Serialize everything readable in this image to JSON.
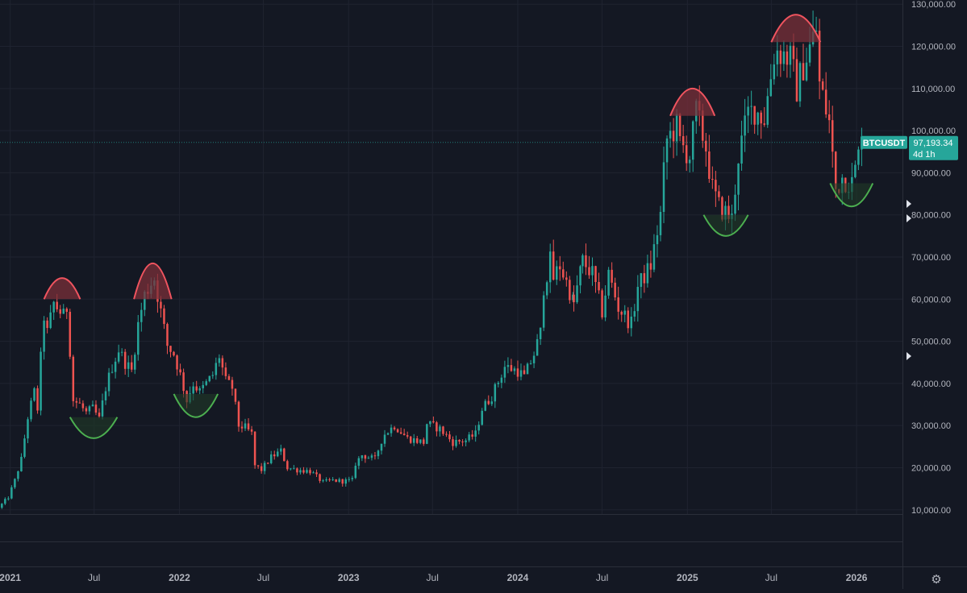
{
  "chart_data": {
    "type": "candlestick",
    "symbol": "BTCUSDT",
    "timeframe": "weekly",
    "current_price_label": "97,193.34",
    "countdown_label": "4d 1h",
    "y_axis": {
      "ticks": [
        10000,
        20000,
        30000,
        40000,
        50000,
        60000,
        70000,
        80000,
        90000,
        100000,
        110000,
        120000,
        130000
      ],
      "tick_labels": [
        "10,000.00",
        "20,000.00",
        "30,000.00",
        "40,000.00",
        "50,000.00",
        "60,000.00",
        "70,000.00",
        "80,000.00",
        "90,000.00",
        "100,000.00",
        "110,000.00",
        "120,000.00",
        "130,000.00"
      ],
      "range": [
        9000,
        131000
      ]
    },
    "x_axis": {
      "range": [
        "2020-12-10",
        "2026-04-10"
      ],
      "ticks": [
        {
          "date": "2021-01-01",
          "label": "2021",
          "bold": true
        },
        {
          "date": "2021-07-01",
          "label": "Jul",
          "bold": false
        },
        {
          "date": "2022-01-01",
          "label": "2022",
          "bold": true
        },
        {
          "date": "2022-07-01",
          "label": "Jul",
          "bold": false
        },
        {
          "date": "2023-01-01",
          "label": "2023",
          "bold": true
        },
        {
          "date": "2023-07-01",
          "label": "Jul",
          "bold": false
        },
        {
          "date": "2024-01-01",
          "label": "2024",
          "bold": true
        },
        {
          "date": "2024-07-01",
          "label": "Jul",
          "bold": false
        },
        {
          "date": "2025-01-01",
          "label": "2025",
          "bold": true
        },
        {
          "date": "2025-07-01",
          "label": "Jul",
          "bold": false
        },
        {
          "date": "2026-01-01",
          "label": "2026",
          "bold": true
        }
      ]
    },
    "series_closes": [
      [
        "2020-12-07",
        10500
      ],
      [
        "2020-12-28",
        13000
      ],
      [
        "2021-01-11",
        17000
      ],
      [
        "2021-01-25",
        22000
      ],
      [
        "2021-02-08",
        32000
      ],
      [
        "2021-02-22",
        38000
      ],
      [
        "2021-03-01",
        34000
      ],
      [
        "2021-03-08",
        46000
      ],
      [
        "2021-03-15",
        56000
      ],
      [
        "2021-03-22",
        52000
      ],
      [
        "2021-04-05",
        59000
      ],
      [
        "2021-04-19",
        57000
      ],
      [
        "2021-04-26",
        56000
      ],
      [
        "2021-05-03",
        58000
      ],
      [
        "2021-05-10",
        48000
      ],
      [
        "2021-05-17",
        36000
      ],
      [
        "2021-05-31",
        35000
      ],
      [
        "2021-06-14",
        33000
      ],
      [
        "2021-06-28",
        34000
      ],
      [
        "2021-07-12",
        31500
      ],
      [
        "2021-07-26",
        39000
      ],
      [
        "2021-08-09",
        44000
      ],
      [
        "2021-08-23",
        48000
      ],
      [
        "2021-09-06",
        45000
      ],
      [
        "2021-09-20",
        43000
      ],
      [
        "2021-10-04",
        54000
      ],
      [
        "2021-10-18",
        61000
      ],
      [
        "2021-11-01",
        64000
      ],
      [
        "2021-11-08",
        65000
      ],
      [
        "2021-11-22",
        57000
      ],
      [
        "2021-12-06",
        49000
      ],
      [
        "2021-12-20",
        47000
      ],
      [
        "2022-01-03",
        42000
      ],
      [
        "2022-01-17",
        36000
      ],
      [
        "2022-01-31",
        40000
      ],
      [
        "2022-02-14",
        38000
      ],
      [
        "2022-02-28",
        40000
      ],
      [
        "2022-03-14",
        42000
      ],
      [
        "2022-03-28",
        46500
      ],
      [
        "2022-04-11",
        40500
      ],
      [
        "2022-04-25",
        39000
      ],
      [
        "2022-05-09",
        30000
      ],
      [
        "2022-05-23",
        29500
      ],
      [
        "2022-06-06",
        28000
      ],
      [
        "2022-06-13",
        20500
      ],
      [
        "2022-06-27",
        19500
      ],
      [
        "2022-07-18",
        22500
      ],
      [
        "2022-08-08",
        24000
      ],
      [
        "2022-08-22",
        20000
      ],
      [
        "2022-09-12",
        19500
      ],
      [
        "2022-10-10",
        19200
      ],
      [
        "2022-11-07",
        16500
      ],
      [
        "2022-11-28",
        17000
      ],
      [
        "2022-12-19",
        16800
      ],
      [
        "2023-01-09",
        17000
      ],
      [
        "2023-01-16",
        21000
      ],
      [
        "2023-01-30",
        23000
      ],
      [
        "2023-02-27",
        22000
      ],
      [
        "2023-03-13",
        26500
      ],
      [
        "2023-03-20",
        28000
      ],
      [
        "2023-04-10",
        30000
      ],
      [
        "2023-05-08",
        27000
      ],
      [
        "2023-06-12",
        26000
      ],
      [
        "2023-06-19",
        30500
      ],
      [
        "2023-07-17",
        29200
      ],
      [
        "2023-08-14",
        26000
      ],
      [
        "2023-09-11",
        26500
      ],
      [
        "2023-10-02",
        28000
      ],
      [
        "2023-10-16",
        34000
      ],
      [
        "2023-11-06",
        37000
      ],
      [
        "2023-12-04",
        44000
      ],
      [
        "2024-01-01",
        43000
      ],
      [
        "2024-01-15",
        41500
      ],
      [
        "2024-02-05",
        47000
      ],
      [
        "2024-02-19",
        52000
      ],
      [
        "2024-02-26",
        63000
      ],
      [
        "2024-03-11",
        69000
      ],
      [
        "2024-03-18",
        65000
      ],
      [
        "2024-04-01",
        68000
      ],
      [
        "2024-04-15",
        64000
      ],
      [
        "2024-05-01",
        59000
      ],
      [
        "2024-05-20",
        69000
      ],
      [
        "2024-06-10",
        66000
      ],
      [
        "2024-07-01",
        57000
      ],
      [
        "2024-07-15",
        66000
      ],
      [
        "2024-08-05",
        58000
      ],
      [
        "2024-09-02",
        54000
      ],
      [
        "2024-09-16",
        63000
      ],
      [
        "2024-10-14",
        68000
      ],
      [
        "2024-11-04",
        80000
      ],
      [
        "2024-11-11",
        90000
      ],
      [
        "2024-11-18",
        98000
      ],
      [
        "2024-12-09",
        101000
      ],
      [
        "2024-12-16",
        97000
      ],
      [
        "2025-01-06",
        94000
      ],
      [
        "2025-01-20",
        104500
      ],
      [
        "2025-02-10",
        96000
      ],
      [
        "2025-02-24",
        86000
      ],
      [
        "2025-03-10",
        82000
      ],
      [
        "2025-04-07",
        79000
      ],
      [
        "2025-04-21",
        94000
      ],
      [
        "2025-05-12",
        104000
      ],
      [
        "2025-05-26",
        105000
      ],
      [
        "2025-06-16",
        103000
      ],
      [
        "2025-07-07",
        118000
      ],
      [
        "2025-07-14",
        119000
      ],
      [
        "2025-08-11",
        117000
      ],
      [
        "2025-08-25",
        110000
      ],
      [
        "2025-09-08",
        115500
      ],
      [
        "2025-10-06",
        124000
      ],
      [
        "2025-10-13",
        111000
      ],
      [
        "2025-11-03",
        102000
      ],
      [
        "2025-11-17",
        86000
      ],
      [
        "2025-12-01",
        89000
      ],
      [
        "2025-12-22",
        87500
      ],
      [
        "2026-01-12",
        97193
      ]
    ],
    "annotations": {
      "tops": [
        {
          "start": "2021-03-15",
          "end": "2021-06-01",
          "level": 60000,
          "peak": 65000
        },
        {
          "start": "2021-09-25",
          "end": "2021-12-15",
          "level": 60000,
          "peak": 68500
        },
        {
          "start": "2024-11-25",
          "end": "2025-03-01",
          "level": 103500,
          "peak": 110000
        },
        {
          "start": "2025-07-01",
          "end": "2025-10-15",
          "level": 121000,
          "peak": 127500
        }
      ],
      "bottoms": [
        {
          "start": "2021-05-10",
          "end": "2021-08-20",
          "level": 32000,
          "trough": 27000
        },
        {
          "start": "2021-12-20",
          "end": "2022-03-25",
          "level": 37500,
          "trough": 32000
        },
        {
          "start": "2025-02-05",
          "end": "2025-05-12",
          "level": 80000,
          "trough": 75000
        },
        {
          "start": "2025-11-05",
          "end": "2026-02-05",
          "level": 87500,
          "trough": 82000
        }
      ]
    },
    "colors": {
      "background": "#141823",
      "up": "#26a69a",
      "down": "#ef5350",
      "grid": "#1f2330",
      "axis_text": "#b2b5be",
      "top_outline": "#f0545f",
      "top_fill": "#7a2f3a",
      "bottom_outline": "#4caf50",
      "price_label_bg": "#26a69a"
    }
  },
  "ui": {
    "settings_icon": "gear-icon",
    "settings_glyph": "⚙"
  }
}
